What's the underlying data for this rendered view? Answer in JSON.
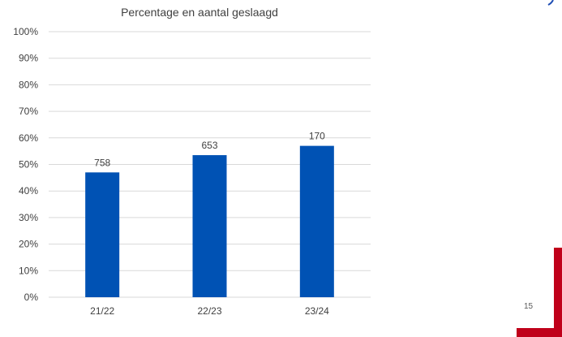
{
  "chart_data": {
    "type": "bar",
    "title": "Percentage en aantal geslaagd",
    "categories": [
      "21/22",
      "22/23",
      "23/24"
    ],
    "values": [
      47,
      53.5,
      57
    ],
    "data_labels": [
      "758",
      "653",
      "170"
    ],
    "ylim": [
      0,
      100
    ],
    "yticks": [
      0,
      10,
      20,
      30,
      40,
      50,
      60,
      70,
      80,
      90,
      100
    ],
    "ytick_labels": [
      "0%",
      "10%",
      "20%",
      "30%",
      "40%",
      "50%",
      "60%",
      "70%",
      "80%",
      "90%",
      "100%"
    ],
    "grid": true,
    "legend": "none",
    "bar_color": "#0052B4"
  },
  "slide": {
    "page_number": "15",
    "accent_color": "#C0001A",
    "corner_color": "#1F4EB4"
  }
}
